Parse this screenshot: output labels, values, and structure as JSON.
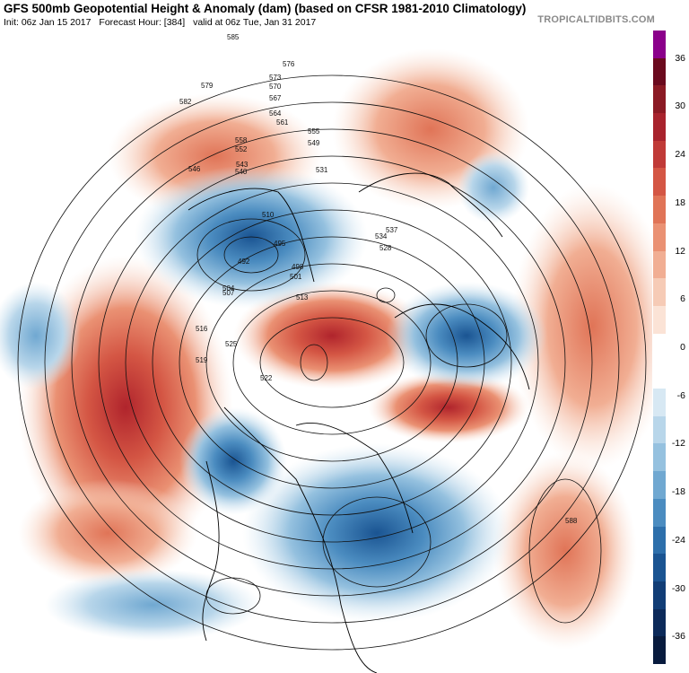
{
  "header": {
    "title": "GFS 500mb Geopotential Height & Anomaly (dam) (based on CFSR 1981-2010 Climatology)",
    "init": "Init: 06z Jan 15 2017",
    "forecast_hour": "Forecast Hour: [384]",
    "valid": "valid at 06z Tue, Jan 31 2017",
    "brand": "TROPICALTIDBITS.COM"
  },
  "colorbar": {
    "labels": [
      "36",
      "30",
      "24",
      "18",
      "12",
      "6",
      "0",
      "-6",
      "-12",
      "-18",
      "-24",
      "-30",
      "-36"
    ],
    "colors": [
      "#8b008b",
      "#6b0a1e",
      "#8b1a24",
      "#a8232d",
      "#c03a37",
      "#d45644",
      "#e07457",
      "#ea9173",
      "#f1ae93",
      "#f6cbb6",
      "#fbe3d6",
      "#ffffff",
      "#ffffff",
      "#d7e8f3",
      "#b8d6ea",
      "#95c1df",
      "#70a8d1",
      "#4b8cc0",
      "#2d6fab",
      "#1a5492",
      "#113d76",
      "#0c2a5a",
      "#081b3e"
    ]
  },
  "map": {
    "contour_labels": [
      "585",
      "576",
      "573",
      "570",
      "567",
      "564",
      "561",
      "558",
      "555",
      "552",
      "549",
      "546",
      "543",
      "540",
      "537",
      "534",
      "531",
      "528",
      "525",
      "522",
      "519",
      "516",
      "513",
      "510",
      "507",
      "504",
      "501",
      "498",
      "495",
      "492",
      "579",
      "582",
      "588"
    ],
    "anomaly_centers": [
      {
        "kind": "positive",
        "label": "+",
        "name": "ridge-west-coast"
      },
      {
        "kind": "positive",
        "label": "+",
        "name": "ridge-arctic"
      },
      {
        "kind": "positive",
        "label": "+",
        "name": "ridge-atlantic"
      },
      {
        "kind": "positive",
        "label": "+",
        "name": "ridge-europe"
      },
      {
        "kind": "negative",
        "label": "-",
        "name": "trough-north-america"
      },
      {
        "kind": "negative",
        "label": "-",
        "name": "trough-siberia"
      },
      {
        "kind": "negative",
        "label": "-",
        "name": "trough-pacific"
      }
    ]
  }
}
